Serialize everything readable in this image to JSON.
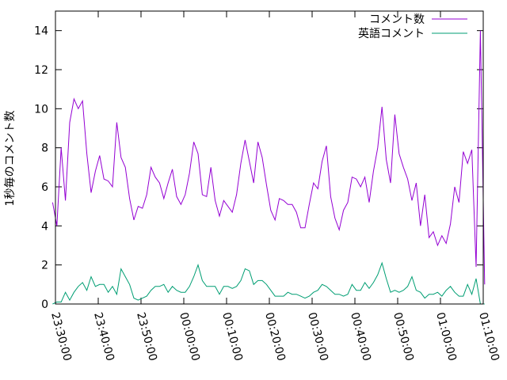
{
  "chart_data": {
    "type": "line",
    "title": "",
    "xlabel": "",
    "ylabel": "1秒毎のコメント数",
    "x_start": "23:29:20",
    "x_interval_seconds": 60,
    "xlim": [
      "23:30:00",
      "01:10:00"
    ],
    "ylim": [
      0,
      15
    ],
    "x_ticks": [
      "23:30:00",
      "23:40:00",
      "23:50:00",
      "00:00:00",
      "00:10:00",
      "00:20:00",
      "00:30:00",
      "00:40:00",
      "00:50:00",
      "01:00:00",
      "01:10:00"
    ],
    "y_ticks": [
      "0",
      "2",
      "4",
      "6",
      "8",
      "10",
      "12",
      "14"
    ],
    "grid": false,
    "legend_position": "top-right",
    "series": [
      {
        "name": "コメント数",
        "color": "#9400d3",
        "values": [
          5.2,
          4.0,
          8.0,
          5.3,
          9.3,
          10.5,
          10.0,
          10.4,
          7.7,
          5.7,
          6.8,
          7.6,
          6.4,
          6.3,
          6.0,
          9.3,
          7.5,
          7.0,
          5.4,
          4.3,
          5.0,
          4.9,
          5.6,
          7.0,
          6.5,
          6.2,
          5.4,
          6.2,
          6.9,
          5.5,
          5.1,
          5.6,
          6.7,
          8.3,
          7.7,
          5.6,
          5.5,
          7.0,
          5.3,
          4.5,
          5.3,
          5.0,
          4.7,
          5.6,
          7.2,
          8.4,
          7.3,
          6.2,
          8.3,
          7.5,
          6.1,
          4.8,
          4.3,
          5.4,
          5.3,
          5.1,
          5.1,
          4.7,
          3.9,
          3.9,
          5.1,
          6.2,
          5.9,
          7.3,
          8.1,
          5.5,
          4.4,
          3.8,
          4.8,
          5.2,
          6.5,
          6.4,
          6.0,
          6.5,
          5.2,
          6.8,
          8.0,
          10.1,
          7.4,
          6.2,
          9.7,
          7.7,
          7.0,
          6.4,
          5.3,
          6.2,
          4.0,
          5.6,
          3.4,
          3.7,
          3.0,
          3.5,
          3.1,
          4.1,
          6.0,
          5.2,
          7.8,
          7.2,
          7.9,
          1.9,
          14.0,
          1.0
        ]
      },
      {
        "name": "英語コメント",
        "color": "#009e73",
        "values": [
          0.0,
          0.1,
          0.1,
          0.6,
          0.2,
          0.6,
          0.9,
          1.1,
          0.7,
          1.4,
          0.9,
          1.0,
          1.0,
          0.6,
          0.9,
          0.5,
          1.8,
          1.4,
          1.0,
          0.3,
          0.2,
          0.3,
          0.4,
          0.7,
          0.9,
          0.9,
          1.0,
          0.6,
          0.9,
          0.7,
          0.6,
          0.6,
          0.9,
          1.4,
          2.0,
          1.2,
          0.9,
          0.9,
          0.9,
          0.5,
          0.9,
          0.9,
          0.8,
          0.9,
          1.2,
          1.8,
          1.7,
          1.0,
          1.2,
          1.2,
          1.0,
          0.7,
          0.4,
          0.4,
          0.4,
          0.6,
          0.5,
          0.5,
          0.4,
          0.3,
          0.4,
          0.6,
          0.7,
          1.0,
          0.9,
          0.7,
          0.5,
          0.5,
          0.4,
          0.5,
          1.0,
          0.7,
          0.7,
          1.1,
          0.8,
          1.1,
          1.5,
          2.1,
          1.3,
          0.6,
          0.7,
          0.6,
          0.7,
          0.9,
          1.4,
          0.7,
          0.6,
          0.3,
          0.5,
          0.5,
          0.6,
          0.4,
          0.7,
          0.9,
          0.6,
          0.4,
          0.4,
          1.0,
          0.5,
          1.3,
          0.0,
          0.0
        ]
      }
    ]
  }
}
